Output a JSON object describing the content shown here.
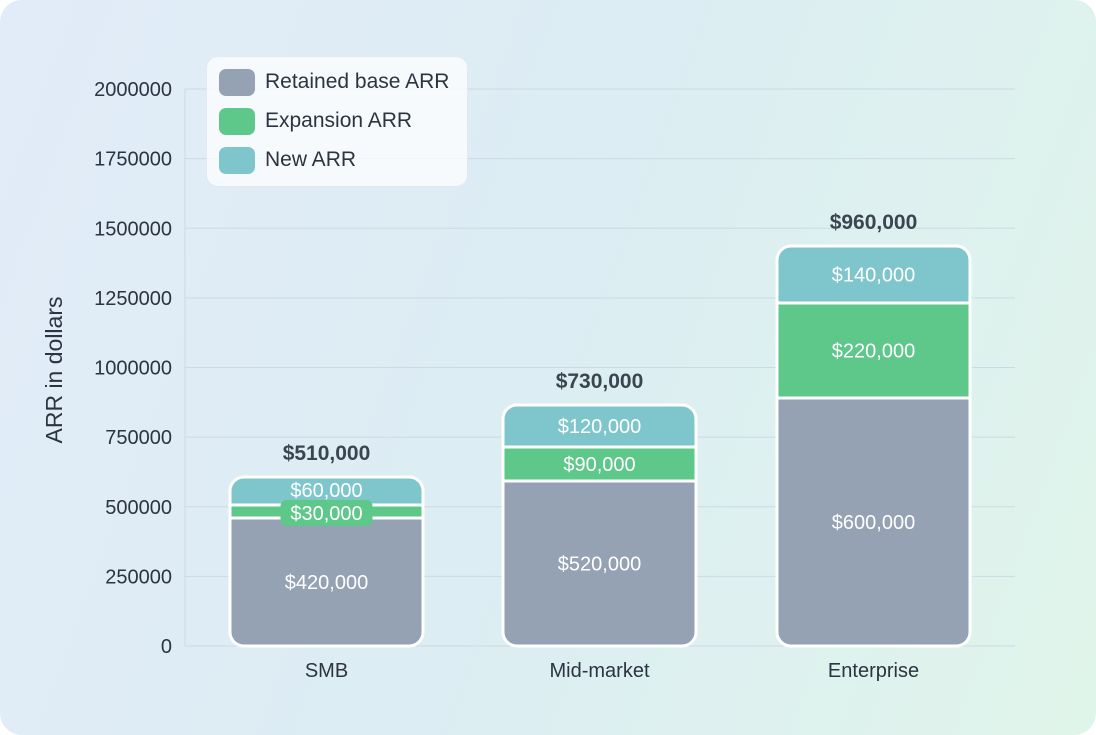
{
  "chart_data": {
    "type": "bar",
    "stacked": true,
    "categories": [
      "SMB",
      "Mid-market",
      "Enterprise"
    ],
    "series": [
      {
        "name": "Retained base ARR",
        "values": [
          420000,
          520000,
          600000
        ],
        "labels": [
          "$420,000",
          "$520,000",
          "$600,000"
        ],
        "color": "#95a2b3"
      },
      {
        "name": "Expansion ARR",
        "values": [
          30000,
          90000,
          220000
        ],
        "labels": [
          "$30,000",
          "$90,000",
          "$220,000"
        ],
        "color": "#5ec78a"
      },
      {
        "name": "New ARR",
        "values": [
          60000,
          120000,
          140000
        ],
        "labels": [
          "$60,000",
          "$120,000",
          "$140,000"
        ],
        "color": "#7fc6cc"
      }
    ],
    "totals": [
      "$510,000",
      "$730,000",
      "$960,000"
    ],
    "ylabel": "ARR in dollars",
    "xlabel": "",
    "ylim": [
      0,
      2000000
    ],
    "yticks": [
      "0",
      "250000",
      "500000",
      "750000",
      "1000000",
      "1250000",
      "1500000",
      "1750000",
      "2000000"
    ],
    "grid": true,
    "legend_position": "top-left"
  }
}
